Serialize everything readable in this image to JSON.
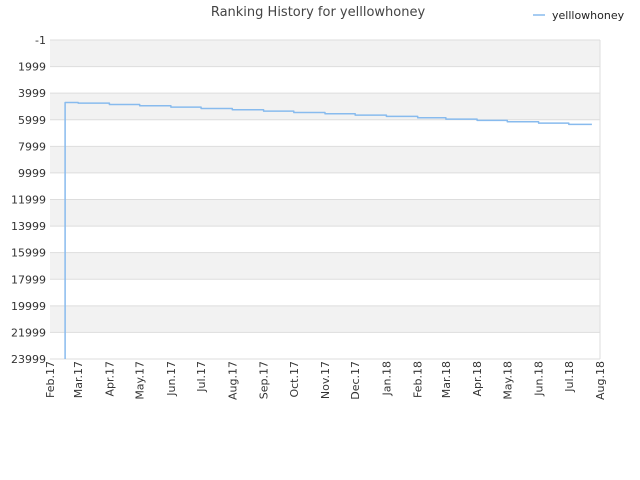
{
  "chart_data": {
    "type": "line",
    "title": "Ranking History for yelllowhoney",
    "xlabel": "",
    "ylabel": "",
    "y_inverted": true,
    "y_ticks": [
      -1,
      1999,
      3999,
      5999,
      7999,
      9999,
      11999,
      13999,
      15999,
      17999,
      19999,
      21999,
      23999
    ],
    "y_tick_labels": [
      "-1",
      "1999",
      "3999",
      "5999",
      "7999",
      "9999",
      "11999",
      "13999",
      "15999",
      "17999",
      "19999",
      "21999",
      "23999"
    ],
    "ylim": [
      -1,
      23999
    ],
    "x_tick_labels": [
      "Feb.17",
      "Mar.17",
      "Apr.17",
      "May.17",
      "Jun.17",
      "Jul.17",
      "Aug.17",
      "Sep.17",
      "Oct.17",
      "Nov.17",
      "Dec.17",
      "Jan.18",
      "Feb.18",
      "Mar.18",
      "Apr.18",
      "May.18",
      "Jun.18",
      "Jul.18",
      "Aug.18"
    ],
    "grid": true,
    "legend_position": "top-right",
    "series": [
      {
        "name": "yelllowhoney",
        "color": "#88bbee",
        "points": [
          [
            "2017-02-16",
            23999
          ],
          [
            "2017-02-16",
            4700
          ],
          [
            "2017-03-01",
            4700
          ],
          [
            "2017-03-01",
            4750
          ],
          [
            "2017-04-01",
            4750
          ],
          [
            "2017-04-01",
            4850
          ],
          [
            "2017-05-01",
            4850
          ],
          [
            "2017-05-01",
            4950
          ],
          [
            "2017-06-01",
            4950
          ],
          [
            "2017-06-01",
            5050
          ],
          [
            "2017-07-01",
            5050
          ],
          [
            "2017-07-01",
            5150
          ],
          [
            "2017-08-01",
            5150
          ],
          [
            "2017-08-01",
            5250
          ],
          [
            "2017-09-01",
            5250
          ],
          [
            "2017-09-01",
            5350
          ],
          [
            "2017-10-01",
            5350
          ],
          [
            "2017-10-01",
            5450
          ],
          [
            "2017-11-01",
            5450
          ],
          [
            "2017-11-01",
            5550
          ],
          [
            "2017-12-01",
            5550
          ],
          [
            "2017-12-01",
            5650
          ],
          [
            "2018-01-01",
            5650
          ],
          [
            "2018-01-01",
            5750
          ],
          [
            "2018-02-01",
            5750
          ],
          [
            "2018-02-01",
            5850
          ],
          [
            "2018-03-01",
            5850
          ],
          [
            "2018-03-01",
            5950
          ],
          [
            "2018-04-01",
            5950
          ],
          [
            "2018-04-01",
            6050
          ],
          [
            "2018-05-01",
            6050
          ],
          [
            "2018-05-01",
            6150
          ],
          [
            "2018-06-01",
            6150
          ],
          [
            "2018-06-01",
            6250
          ],
          [
            "2018-07-01",
            6250
          ],
          [
            "2018-07-01",
            6350
          ],
          [
            "2018-07-24",
            6350
          ]
        ]
      }
    ]
  }
}
